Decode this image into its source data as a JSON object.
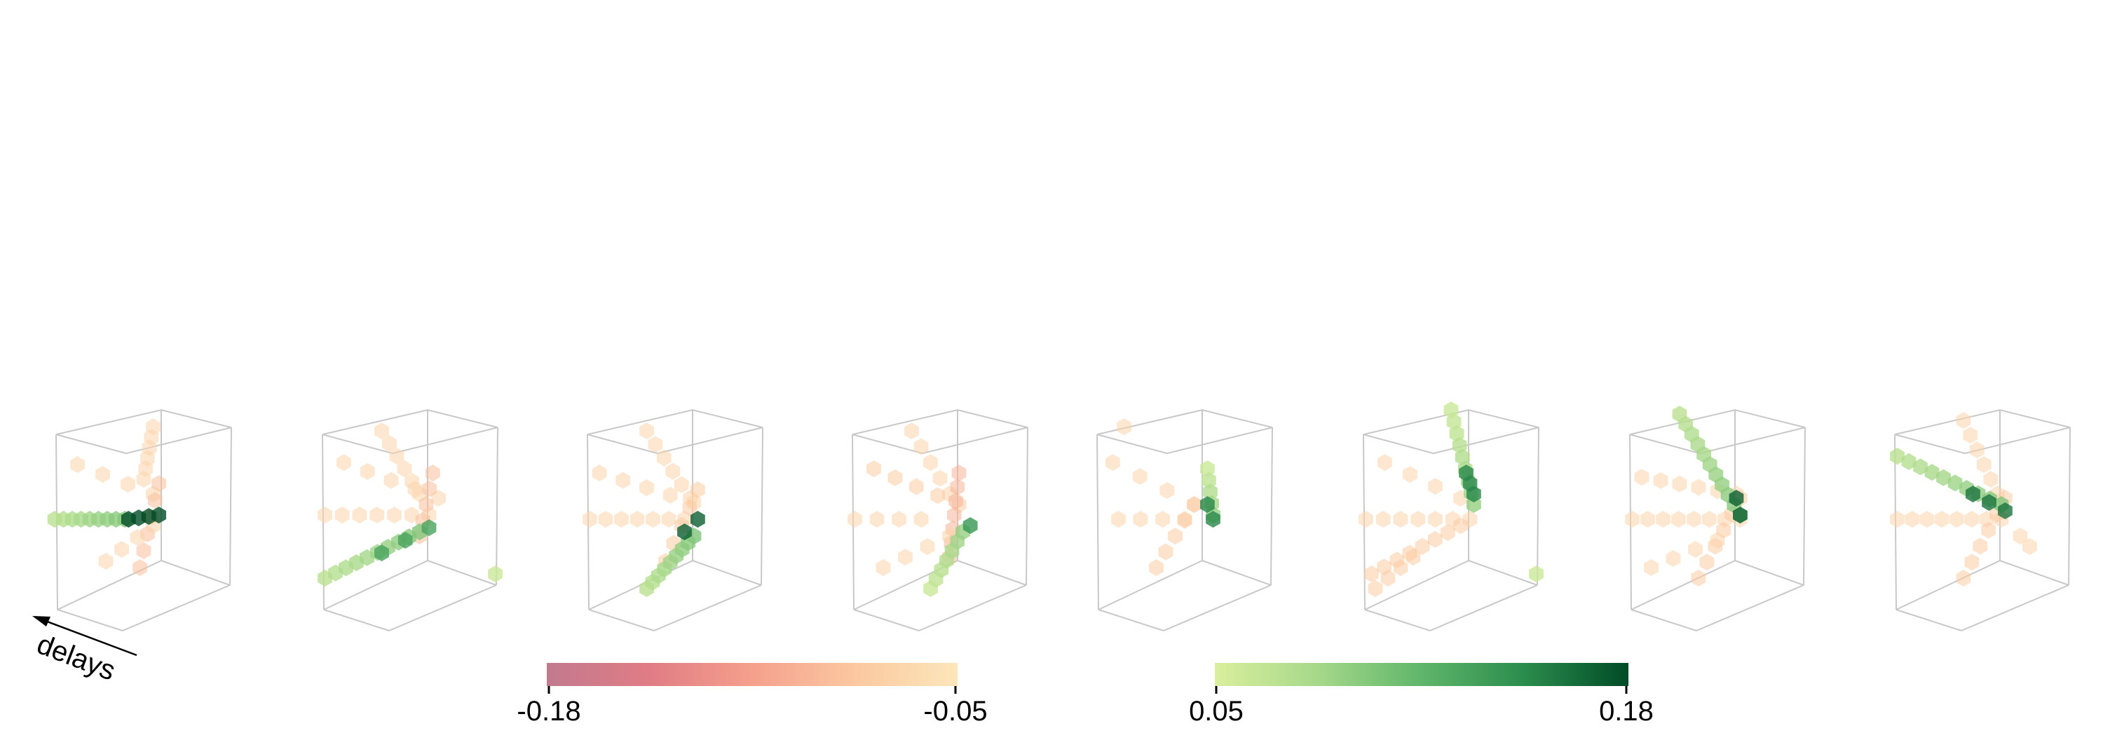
{
  "figure": {
    "axis_annotation": "delays"
  },
  "colorbars": {
    "negative": {
      "min_label": "-0.18",
      "max_label": "-0.05",
      "colors": [
        "#c27a8e",
        "#e07c85",
        "#f5a08c",
        "#fbc8a0",
        "#fde6ba"
      ]
    },
    "positive": {
      "min_label": "0.05",
      "max_label": "0.18",
      "colors": [
        "#d9ef9d",
        "#a6d88a",
        "#5fb66a",
        "#2a8c4c",
        "#004b26"
      ]
    }
  },
  "chart_data": {
    "type": "scatter",
    "description_kind": "3d-voxel-scatter-panels",
    "value_range": [
      -0.18,
      0.18
    ],
    "panels": [
      {
        "name": "",
        "arms": [
          {
            "sign": "neg",
            "from": [
              0.55,
              0.08
            ],
            "to": [
              0.5,
              0.33
            ],
            "n": 6,
            "value": -0.07
          },
          {
            "sign": "neg",
            "from": [
              0.15,
              0.26
            ],
            "to": [
              0.55,
              0.4
            ],
            "n": 4,
            "value": -0.07
          },
          {
            "sign": "neg",
            "from": [
              0.58,
              0.35
            ],
            "to": [
              0.48,
              0.75
            ],
            "n": 6,
            "value": -0.09
          },
          {
            "sign": "neg",
            "from": [
              0.3,
              0.72
            ],
            "to": [
              0.55,
              0.55
            ],
            "n": 4,
            "value": -0.07
          },
          {
            "sign": "pos",
            "from": [
              0.03,
              0.52
            ],
            "to": [
              0.4,
              0.52
            ],
            "n": 9,
            "value": 0.07
          },
          {
            "sign": "pos",
            "from": [
              0.42,
              0.52
            ],
            "to": [
              0.58,
              0.5
            ],
            "n": 4,
            "value": 0.18
          }
        ]
      },
      {
        "name": "",
        "arms": [
          {
            "sign": "neg",
            "from": [
              0.35,
              0.1
            ],
            "to": [
              0.55,
              0.4
            ],
            "n": 6,
            "value": -0.07
          },
          {
            "sign": "neg",
            "from": [
              0.15,
              0.25
            ],
            "to": [
              0.65,
              0.42
            ],
            "n": 5,
            "value": -0.07
          },
          {
            "sign": "neg",
            "from": [
              0.05,
              0.5
            ],
            "to": [
              0.6,
              0.5
            ],
            "n": 7,
            "value": -0.07
          },
          {
            "sign": "neg",
            "from": [
              0.62,
              0.3
            ],
            "to": [
              0.55,
              0.6
            ],
            "n": 5,
            "value": -0.09
          },
          {
            "sign": "pos",
            "from": [
              0.05,
              0.8
            ],
            "to": [
              0.55,
              0.58
            ],
            "n": 10,
            "value": 0.07
          },
          {
            "sign": "pos",
            "from": [
              0.35,
              0.68
            ],
            "to": [
              0.6,
              0.56
            ],
            "n": 3,
            "value": 0.13
          },
          {
            "sign": "pos",
            "from": [
              0.95,
              0.78
            ],
            "to": [
              0.95,
              0.78
            ],
            "n": 1,
            "value": 0.06
          }
        ]
      },
      {
        "name": "",
        "arms": [
          {
            "sign": "neg",
            "from": [
              0.35,
              0.1
            ],
            "to": [
              0.58,
              0.42
            ],
            "n": 6,
            "value": -0.07
          },
          {
            "sign": "neg",
            "from": [
              0.1,
              0.3
            ],
            "to": [
              0.6,
              0.44
            ],
            "n": 5,
            "value": -0.07
          },
          {
            "sign": "neg",
            "from": [
              0.05,
              0.52
            ],
            "to": [
              0.55,
              0.52
            ],
            "n": 7,
            "value": -0.07
          },
          {
            "sign": "neg",
            "from": [
              0.62,
              0.38
            ],
            "to": [
              0.45,
              0.72
            ],
            "n": 5,
            "value": -0.08
          },
          {
            "sign": "pos",
            "from": [
              0.35,
              0.85
            ],
            "to": [
              0.6,
              0.6
            ],
            "n": 9,
            "value": 0.07
          },
          {
            "sign": "pos",
            "from": [
              0.55,
              0.58
            ],
            "to": [
              0.62,
              0.52
            ],
            "n": 2,
            "value": 0.17
          }
        ]
      },
      {
        "name": "",
        "arms": [
          {
            "sign": "neg",
            "from": [
              0.35,
              0.1
            ],
            "to": [
              0.55,
              0.4
            ],
            "n": 5,
            "value": -0.07
          },
          {
            "sign": "neg",
            "from": [
              0.15,
              0.28
            ],
            "to": [
              0.6,
              0.45
            ],
            "n": 5,
            "value": -0.08
          },
          {
            "sign": "neg",
            "from": [
              0.05,
              0.52
            ],
            "to": [
              0.4,
              0.52
            ],
            "n": 4,
            "value": -0.07
          },
          {
            "sign": "neg",
            "from": [
              0.6,
              0.3
            ],
            "to": [
              0.55,
              0.7
            ],
            "n": 7,
            "value": -0.1
          },
          {
            "sign": "neg",
            "from": [
              0.2,
              0.75
            ],
            "to": [
              0.55,
              0.6
            ],
            "n": 4,
            "value": -0.07
          },
          {
            "sign": "pos",
            "from": [
              0.45,
              0.85
            ],
            "to": [
              0.62,
              0.58
            ],
            "n": 7,
            "value": 0.06
          },
          {
            "sign": "pos",
            "from": [
              0.66,
              0.55
            ],
            "to": [
              0.66,
              0.55
            ],
            "n": 1,
            "value": 0.14
          }
        ]
      },
      {
        "name": "",
        "arms": [
          {
            "sign": "neg",
            "from": [
              0.12,
              0.25
            ],
            "to": [
              0.55,
              0.45
            ],
            "n": 4,
            "value": -0.07
          },
          {
            "sign": "neg",
            "from": [
              0.15,
              0.52
            ],
            "to": [
              0.5,
              0.52
            ],
            "n": 4,
            "value": -0.07
          },
          {
            "sign": "neg",
            "from": [
              0.55,
              0.45
            ],
            "to": [
              0.35,
              0.75
            ],
            "n": 5,
            "value": -0.08
          },
          {
            "sign": "neg",
            "from": [
              0.18,
              0.08
            ],
            "to": [
              0.18,
              0.08
            ],
            "n": 1,
            "value": -0.07
          },
          {
            "sign": "pos",
            "from": [
              0.62,
              0.28
            ],
            "to": [
              0.65,
              0.5
            ],
            "n": 5,
            "value": 0.06
          },
          {
            "sign": "pos",
            "from": [
              0.62,
              0.45
            ],
            "to": [
              0.65,
              0.52
            ],
            "n": 2,
            "value": 0.15
          }
        ]
      },
      {
        "name": "",
        "arms": [
          {
            "sign": "neg",
            "from": [
              0.15,
              0.25
            ],
            "to": [
              0.55,
              0.42
            ],
            "n": 4,
            "value": -0.07
          },
          {
            "sign": "neg",
            "from": [
              0.05,
              0.52
            ],
            "to": [
              0.6,
              0.52
            ],
            "n": 7,
            "value": -0.07
          },
          {
            "sign": "neg",
            "from": [
              0.08,
              0.78
            ],
            "to": [
              0.55,
              0.55
            ],
            "n": 8,
            "value": -0.08
          },
          {
            "sign": "neg",
            "from": [
              0.1,
              0.85
            ],
            "to": [
              0.3,
              0.7
            ],
            "n": 4,
            "value": -0.08
          },
          {
            "sign": "pos",
            "from": [
              0.5,
              0.0
            ],
            "to": [
              0.62,
              0.45
            ],
            "n": 9,
            "value": 0.06
          },
          {
            "sign": "pos",
            "from": [
              0.58,
              0.3
            ],
            "to": [
              0.62,
              0.4
            ],
            "n": 3,
            "value": 0.15
          },
          {
            "sign": "pos",
            "from": [
              0.95,
              0.78
            ],
            "to": [
              0.95,
              0.78
            ],
            "n": 1,
            "value": 0.06
          }
        ]
      },
      {
        "name": "",
        "arms": [
          {
            "sign": "neg",
            "from": [
              0.1,
              0.32
            ],
            "to": [
              0.6,
              0.4
            ],
            "n": 6,
            "value": -0.07
          },
          {
            "sign": "neg",
            "from": [
              0.05,
              0.52
            ],
            "to": [
              0.62,
              0.52
            ],
            "n": 8,
            "value": -0.07
          },
          {
            "sign": "neg",
            "from": [
              0.62,
              0.42
            ],
            "to": [
              0.4,
              0.8
            ],
            "n": 6,
            "value": -0.08
          },
          {
            "sign": "neg",
            "from": [
              0.15,
              0.75
            ],
            "to": [
              0.5,
              0.62
            ],
            "n": 4,
            "value": -0.07
          },
          {
            "sign": "pos",
            "from": [
              0.3,
              0.02
            ],
            "to": [
              0.62,
              0.5
            ],
            "n": 11,
            "value": 0.07
          },
          {
            "sign": "pos",
            "from": [
              0.6,
              0.42
            ],
            "to": [
              0.62,
              0.5
            ],
            "n": 2,
            "value": 0.17
          }
        ]
      },
      {
        "name": "",
        "arms": [
          {
            "sign": "neg",
            "from": [
              0.4,
              0.05
            ],
            "to": [
              0.58,
              0.4
            ],
            "n": 6,
            "value": -0.07
          },
          {
            "sign": "neg",
            "from": [
              0.05,
              0.52
            ],
            "to": [
              0.6,
              0.52
            ],
            "n": 8,
            "value": -0.07
          },
          {
            "sign": "neg",
            "from": [
              0.62,
              0.42
            ],
            "to": [
              0.4,
              0.8
            ],
            "n": 6,
            "value": -0.08
          },
          {
            "sign": "neg",
            "from": [
              0.7,
              0.6
            ],
            "to": [
              0.75,
              0.65
            ],
            "n": 2,
            "value": -0.07
          },
          {
            "sign": "pos",
            "from": [
              0.05,
              0.22
            ],
            "to": [
              0.6,
              0.45
            ],
            "n": 10,
            "value": 0.07
          },
          {
            "sign": "pos",
            "from": [
              0.45,
              0.4
            ],
            "to": [
              0.62,
              0.48
            ],
            "n": 3,
            "value": 0.16
          }
        ]
      }
    ]
  }
}
